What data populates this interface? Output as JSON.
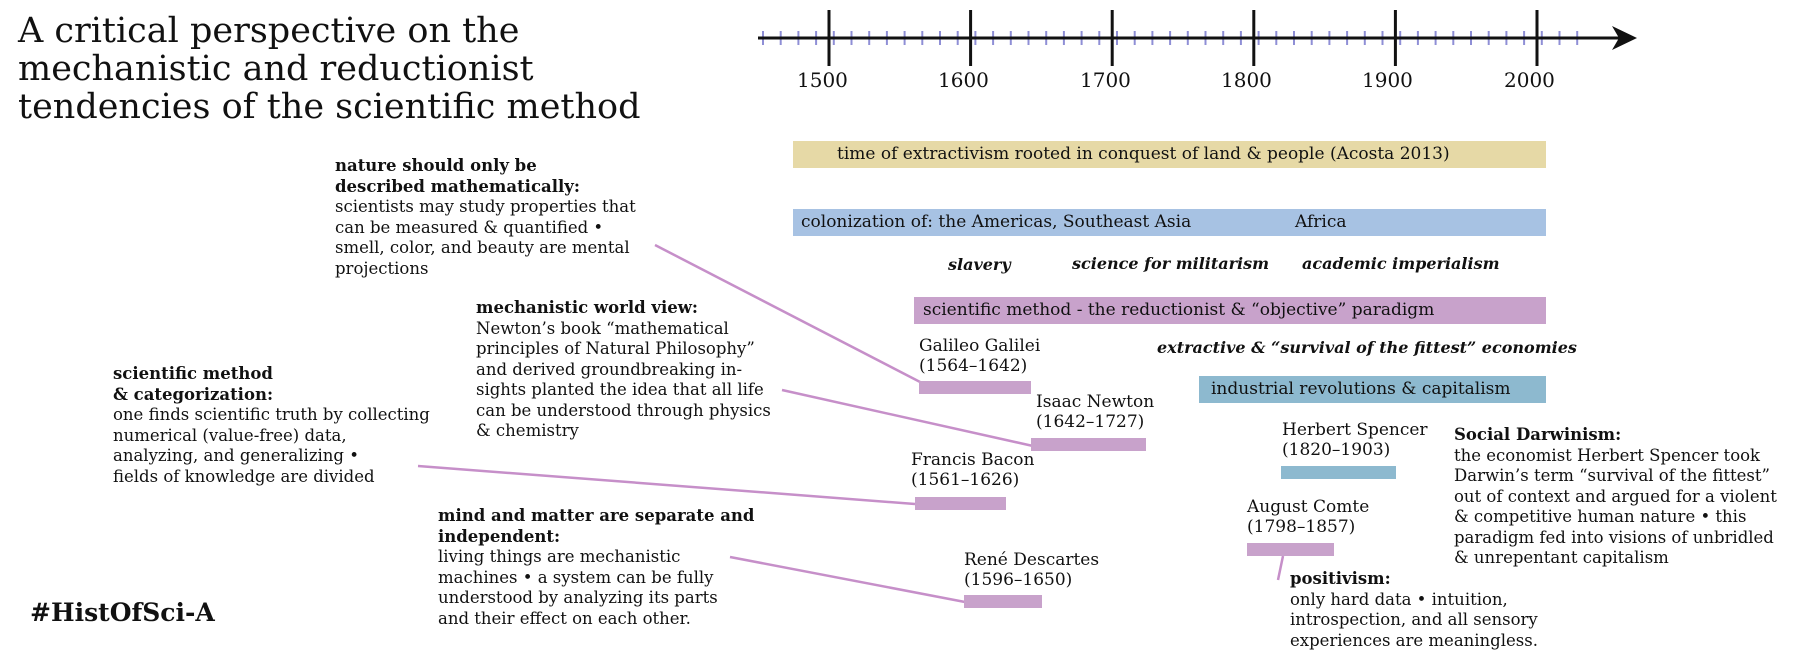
{
  "title": "A critical perspective on the mechanistic and reductionist tendencies of the scientific method",
  "hashtag": "#HistOfSci-A",
  "colors": {
    "tan": "#e6d9a6",
    "blue": "#a7c2e3",
    "purple": "#c8a2cb",
    "teal": "#8db9cf",
    "axis": "#111111",
    "minor_tick": "#8f8fd6",
    "connector": "#c68fc9"
  },
  "axis": {
    "ticks": [
      "1500",
      "1600",
      "1700",
      "1800",
      "1900",
      "2000"
    ]
  },
  "bars": {
    "extractivism": "time of extractivism rooted in conquest of land & people (Acosta 2013)",
    "colonization_1": "colonization of: the Americas, Southeast Asia",
    "colonization_2": "Africa",
    "scientific_method": "scientific method - the reductionist & “objective” paradigm",
    "industrial": "industrial revolutions & capitalism"
  },
  "eras": {
    "slavery": "slavery",
    "militarism": "science for militarism",
    "imperialism": "academic imperialism",
    "economies": "extractive & “survival of the fittest” economies"
  },
  "people": {
    "galilei": {
      "name": "Galileo Galilei",
      "years": "(1564–1642)"
    },
    "newton": {
      "name": "Isaac Newton",
      "years": "(1642–1727)"
    },
    "bacon": {
      "name": "Francis Bacon",
      "years": "(1561–1626)"
    },
    "descartes": {
      "name": "René Descartes",
      "years": "(1596–1650)"
    },
    "spencer": {
      "name": "Herbert Spencer",
      "years": "(1820–1903)"
    },
    "comte": {
      "name": "August Comte",
      "years": "(1798–1857)"
    }
  },
  "notes": {
    "nature": {
      "heading_1": "nature should only be",
      "heading_2": "described mathematically:",
      "lines": [
        "scientists may study properties that",
        "can be measured & quantified •",
        "smell, color, and beauty are mental",
        "projections"
      ]
    },
    "mechanistic": {
      "heading": "mechanistic world view:",
      "lines": [
        "Newton’s book “mathematical",
        "principles of Natural Philosophy”",
        "and derived groundbreaking in-",
        "sights planted the idea that all life",
        "can be understood through physics",
        "& chemistry"
      ]
    },
    "categorization": {
      "heading_1": "scientific method",
      "heading_2": "& categorization:",
      "lines": [
        "one finds scientific truth by collecting",
        "numerical (value-free) data,",
        "analyzing, and generalizing •",
        "fields of knowledge are divided"
      ]
    },
    "mind_matter": {
      "heading_1": "mind and matter are separate and",
      "heading_2": "independent:",
      "lines": [
        "living things are mechanistic",
        "machines • a system can be fully",
        "understood by analyzing its parts",
        "and their effect on each other."
      ]
    },
    "social_darwinism": {
      "heading": "Social Darwinism:",
      "lines": [
        "the economist Herbert Spencer took",
        "Darwin’s term “survival of the fittest”",
        "out of context and argued for a violent",
        "& competitive human nature • this",
        "paradigm fed into visions of unbridled",
        "& unrepentant capitalism"
      ]
    },
    "positivism": {
      "heading": "positivism:",
      "lines": [
        "only hard data • intuition,",
        "introspection, and all sensory",
        "experiences are meaningless."
      ]
    }
  }
}
